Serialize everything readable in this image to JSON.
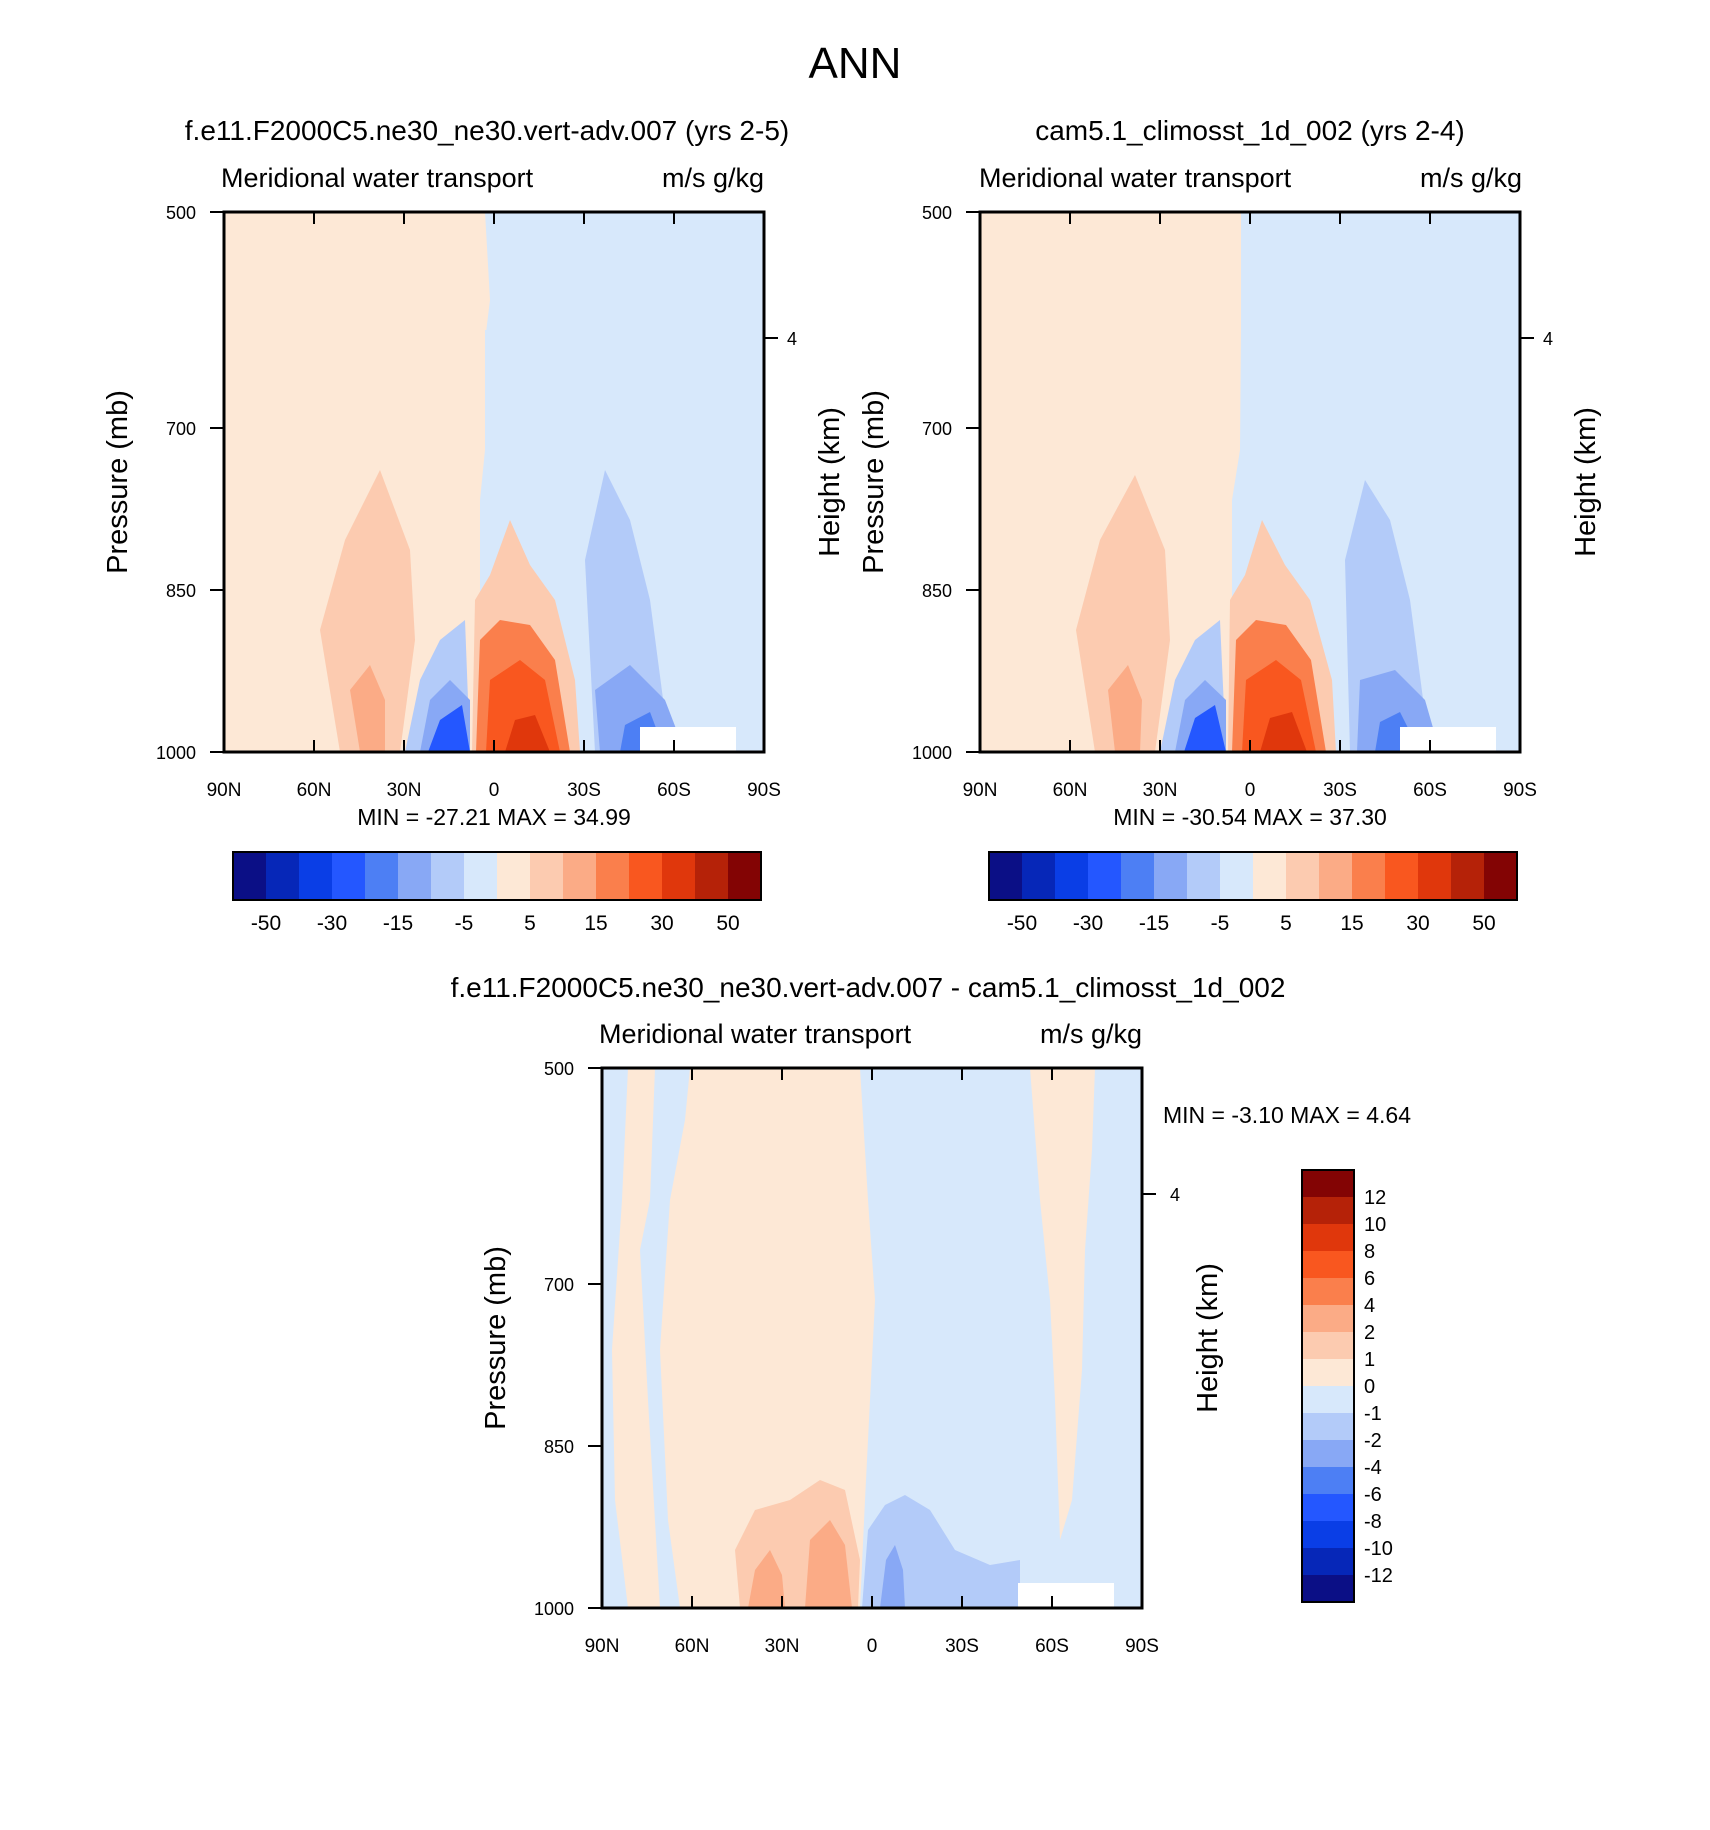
{
  "figure_title": "ANN",
  "colors": {
    "frame": "#000000",
    "missing": "#ffffff"
  },
  "chart_data": [
    {
      "type": "heatmap",
      "title": "f.e11.F2000C5.ne30_ne30.vert-adv.007 (yrs 2-5)",
      "subtitle_left": "Meridional water transport",
      "subtitle_right": "m/s g/kg",
      "xlabel": "",
      "ylabel": "Pressure (mb)",
      "ylabel_right": "Height (km)",
      "x_ticks": [
        "90N",
        "60N",
        "30N",
        "0",
        "30S",
        "60S",
        "90S"
      ],
      "y_ticks": [
        "500",
        "700",
        "850",
        "1000"
      ],
      "right_ticks": [
        "4"
      ],
      "ylim": [
        1000,
        500
      ],
      "stats": "MIN = -27.21  MAX =  34.99",
      "min": -27.21,
      "max": 34.99,
      "colorbar": {
        "orientation": "horizontal",
        "labels": [
          "-50",
          "-30",
          "-15",
          "-5",
          "5",
          "15",
          "30",
          "50"
        ]
      }
    },
    {
      "type": "heatmap",
      "title": "cam5.1_climosst_1d_002 (yrs 2-4)",
      "subtitle_left": "Meridional water transport",
      "subtitle_right": "m/s g/kg",
      "xlabel": "",
      "ylabel": "Pressure (mb)",
      "ylabel_right": "Height (km)",
      "x_ticks": [
        "90N",
        "60N",
        "30N",
        "0",
        "30S",
        "60S",
        "90S"
      ],
      "y_ticks": [
        "500",
        "700",
        "850",
        "1000"
      ],
      "right_ticks": [
        "4"
      ],
      "ylim": [
        1000,
        500
      ],
      "stats": "MIN = -30.54  MAX =  37.30",
      "min": -30.54,
      "max": 37.3,
      "colorbar": {
        "orientation": "horizontal",
        "labels": [
          "-50",
          "-30",
          "-15",
          "-5",
          "5",
          "15",
          "30",
          "50"
        ]
      }
    },
    {
      "type": "heatmap",
      "title": "f.e11.F2000C5.ne30_ne30.vert-adv.007 - cam5.1_climosst_1d_002",
      "subtitle_left": "Meridional water transport",
      "subtitle_right": "m/s g/kg",
      "xlabel": "",
      "ylabel": "Pressure (mb)",
      "ylabel_right": "Height (km)",
      "x_ticks": [
        "90N",
        "60N",
        "30N",
        "0",
        "30S",
        "60S",
        "90S"
      ],
      "y_ticks": [
        "500",
        "700",
        "850",
        "1000"
      ],
      "right_ticks": [
        "4"
      ],
      "ylim": [
        1000,
        500
      ],
      "stats": "MIN =  -3.10  MAX =   4.64",
      "min": -3.1,
      "max": 4.64,
      "colorbar": {
        "orientation": "vertical",
        "labels": [
          "12",
          "10",
          "8",
          "6",
          "4",
          "2",
          "1",
          "0",
          "-1",
          "-2",
          "-4",
          "-6",
          "-8",
          "-10",
          "-12"
        ]
      }
    }
  ],
  "palette": [
    "#0b0f86",
    "#0627b8",
    "#0a3ee6",
    "#2457ff",
    "#4d7ff4",
    "#88a8f5",
    "#b3cbf9",
    "#d7e8fb",
    "#fde8d6",
    "#fccbb0",
    "#fbab86",
    "#fa7f4c",
    "#f9571f",
    "#e0370c",
    "#b52208",
    "#830404"
  ]
}
